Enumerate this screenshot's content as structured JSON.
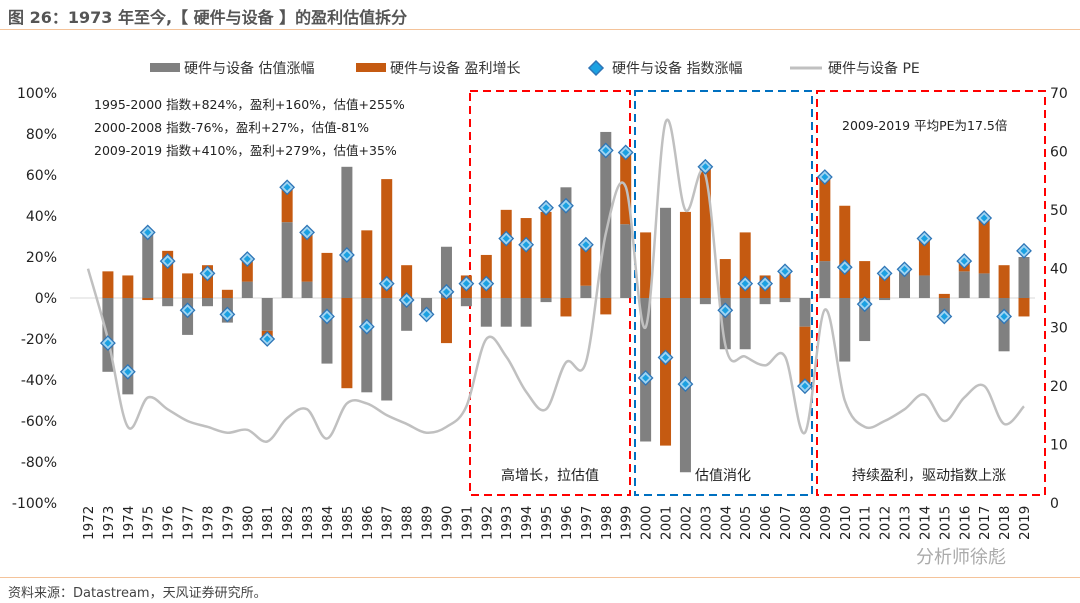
{
  "title": "图 26：1973 年至今,【 硬件与设备 】的盈利估值拆分",
  "source": "资料来源：Datastream，天风证券研究所。",
  "watermark": "分析师徐彪",
  "colors": {
    "valuation": "#808080",
    "earnings": "#c55a11",
    "index": "#1ba1e2",
    "pe": "#c0c0c0",
    "box_red": "#ff0000",
    "box_blue": "#0070c0"
  },
  "chart_data": {
    "type": "bar",
    "stacked": true,
    "categories": [
      "1972",
      "1973",
      "1974",
      "1975",
      "1976",
      "1977",
      "1978",
      "1979",
      "1980",
      "1981",
      "1982",
      "1983",
      "1984",
      "1985",
      "1986",
      "1987",
      "1988",
      "1989",
      "1990",
      "1991",
      "1992",
      "1993",
      "1994",
      "1995",
      "1996",
      "1997",
      "1998",
      "1999",
      "2000",
      "2001",
      "2002",
      "2003",
      "2004",
      "2005",
      "2006",
      "2007",
      "2008",
      "2009",
      "2010",
      "2011",
      "2012",
      "2013",
      "2014",
      "2015",
      "2016",
      "2017",
      "2018",
      "2019"
    ],
    "series": [
      {
        "name": "硬件与设备 估值涨幅",
        "type": "bar",
        "axis": "left",
        "values": [
          null,
          -36,
          -47,
          32,
          -4,
          -18,
          -4,
          -12,
          8,
          -16,
          37,
          8,
          -32,
          64,
          -46,
          -50,
          -16,
          -8,
          25,
          -4,
          -14,
          -14,
          -14,
          -2,
          54,
          6,
          81,
          36,
          -70,
          44,
          -85,
          -3,
          -25,
          -25,
          -3,
          -2,
          -14,
          18,
          -31,
          -21,
          -1,
          14,
          11,
          -9,
          13,
          12,
          -26,
          20
        ]
      },
      {
        "name": "硬件与设备 盈利增长",
        "type": "bar",
        "axis": "left",
        "values": [
          null,
          13,
          11,
          -1,
          23,
          12,
          16,
          4,
          11,
          -3,
          18,
          24,
          22,
          -44,
          33,
          58,
          16,
          0,
          -22,
          11,
          21,
          43,
          39,
          42,
          -9,
          20,
          -8,
          36,
          32,
          -72,
          42,
          63,
          19,
          32,
          11,
          12,
          -30,
          41,
          45,
          18,
          11,
          0,
          18,
          2,
          4,
          27,
          16,
          -9
        ]
      },
      {
        "name": "硬件与设备 指数涨幅",
        "type": "scatter",
        "axis": "left",
        "values": [
          null,
          -22,
          -36,
          32,
          18,
          -6,
          12,
          -8,
          19,
          -20,
          54,
          32,
          -9,
          21,
          -14,
          7,
          -1,
          -8,
          3,
          7,
          7,
          29,
          26,
          44,
          45,
          26,
          72,
          71,
          -39,
          -29,
          -42,
          64,
          -6,
          7,
          7,
          13,
          -43,
          59,
          15,
          -3,
          12,
          14,
          29,
          -9,
          18,
          39,
          -9,
          23
        ]
      },
      {
        "name": "硬件与设备 PE",
        "type": "line",
        "axis": "right",
        "values": [
          40,
          28,
          13,
          18,
          16,
          14,
          13,
          12,
          12.5,
          10.5,
          14.5,
          16,
          11,
          17,
          17,
          15,
          13.5,
          12,
          13,
          16.5,
          28,
          25,
          19,
          16,
          24,
          24,
          46,
          54,
          30,
          65,
          50,
          56,
          27,
          25,
          23.5,
          25,
          12,
          33,
          17.5,
          13,
          14,
          16,
          18.5,
          14,
          18,
          20,
          13.5,
          16.5
        ]
      }
    ],
    "y_left": {
      "range": [
        -100,
        100
      ],
      "ticks": [
        "100%",
        "80%",
        "60%",
        "40%",
        "20%",
        "0%",
        "-20%",
        "-40%",
        "-60%",
        "-80%",
        "-100%"
      ]
    },
    "y_right": {
      "range": [
        0,
        70
      ],
      "ticks": [
        "70",
        "60",
        "50",
        "40",
        "30",
        "20",
        "10",
        "0"
      ]
    },
    "legend_position": "top",
    "grid": false,
    "annotations": {
      "periods": [
        "1995-2000  指数+824%，盈利+160%，估值+255%",
        "2000-2008  指数-76%，盈利+27%，估值-81%",
        "2009-2019  指数+410%，盈利+279%，估值+35%"
      ],
      "pe_note": "2009-2019  平均PE为17.5倍",
      "box1": "高增长，拉估值",
      "box2": "估值消化",
      "box3": "持续盈利，驱动指数上涨"
    }
  }
}
